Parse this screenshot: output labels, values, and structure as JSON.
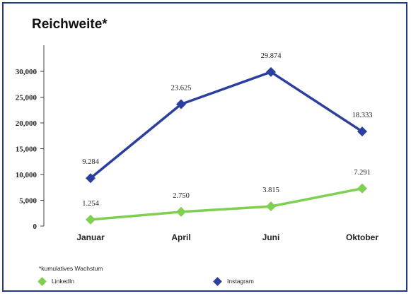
{
  "title": "Reichweite*",
  "footnote": "*kumulatives Wachstum",
  "colors": {
    "linkedin": "#7ed050",
    "instagram": "#2b3f9e",
    "border": "#1f3a8a"
  },
  "chart_data": {
    "type": "line",
    "title": "Reichweite*",
    "categories": [
      "Januar",
      "April",
      "Juni",
      "Oktober"
    ],
    "ylim": [
      0,
      30000
    ],
    "yticks": [
      0,
      5000,
      10000,
      15000,
      20000,
      25000,
      30000
    ],
    "ytick_labels": [
      "0",
      "5,000",
      "10,000",
      "15,000",
      "20,000",
      "25,000",
      "30,000"
    ],
    "grid": false,
    "legend": "bottom",
    "series": [
      {
        "name": "Instagram",
        "color": "#2b3f9e",
        "marker": "diamond",
        "values": [
          9284,
          23625,
          29874,
          18333
        ],
        "labels": [
          "9.284",
          "23.625",
          "29.874",
          "18.333"
        ]
      },
      {
        "name": "LinkedIn",
        "color": "#7ed050",
        "marker": "diamond",
        "values": [
          1254,
          2750,
          3815,
          7291
        ],
        "labels": [
          "1.254",
          "2.750",
          "3.815",
          "7.291"
        ]
      }
    ]
  },
  "legend_items": [
    {
      "name": "LinkedIn",
      "color": "#7ed050"
    },
    {
      "name": "Instagram",
      "color": "#2b3f9e"
    }
  ]
}
